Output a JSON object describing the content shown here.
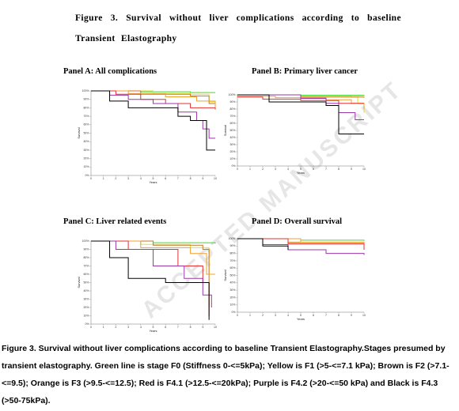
{
  "header": {
    "title": "Figure 3. Survival without liver complications according to baseline Transient Elastography"
  },
  "watermark": "ACCEPTED MANUSCRIPT",
  "caption": "Figure 3. Survival without liver complications according to baseline Transient Elastography.Stages presumed by transient elastography. Green line is stage F0 (Stiffness 0-<=5kPa); Yellow is F1 (>5-<=7.1 kPa); Brown is F2 (>7.1-<=9.5); Orange is F3 (>9.5-<=12.5); Red is F4.1 (>12.5-<=20kPa); Purple is F4.2 (>20-<=50 kPa) and Black is F4.3 (>50-75kPa).",
  "chart_data": [
    {
      "type": "line",
      "title": "Panel A: All complications",
      "xlabel": "Years",
      "ylabel": "Survival",
      "xlim": [
        0,
        10
      ],
      "ylim": [
        0,
        100
      ],
      "xticks": [
        0,
        1,
        2,
        3,
        4,
        5,
        6,
        7,
        8,
        9,
        10
      ],
      "yticks": [
        {
          "value": 0,
          "label": "0%"
        },
        {
          "value": 10,
          "label": "10%"
        },
        {
          "value": 20,
          "label": "20%"
        },
        {
          "value": 30,
          "label": "30%"
        },
        {
          "value": 40,
          "label": "40%"
        },
        {
          "value": 50,
          "label": "50%"
        },
        {
          "value": 60,
          "label": "60%"
        },
        {
          "value": 70,
          "label": "70%"
        },
        {
          "value": 80,
          "label": "80%"
        },
        {
          "value": 90,
          "label": "90%"
        },
        {
          "value": 100,
          "label": "100%"
        }
      ],
      "series": [
        {
          "color": "#44d63a",
          "x": [
            0,
            4,
            8,
            10
          ],
          "values": [
            100,
            99,
            98,
            98
          ]
        },
        {
          "color": "#e6e020",
          "x": [
            0,
            5,
            8,
            9.5,
            10
          ],
          "values": [
            100,
            97,
            96,
            87,
            80
          ]
        },
        {
          "color": "#c47a22",
          "x": [
            0,
            4,
            8,
            9.5,
            10
          ],
          "values": [
            100,
            96,
            94,
            85,
            85
          ]
        },
        {
          "color": "#f0a030",
          "x": [
            0,
            3,
            6,
            8.5,
            10
          ],
          "values": [
            100,
            97,
            93,
            88,
            80
          ]
        },
        {
          "color": "#e53030",
          "x": [
            0,
            2,
            4,
            6,
            8,
            10
          ],
          "values": [
            100,
            96,
            90,
            85,
            80,
            78
          ]
        },
        {
          "color": "#9a36a8",
          "x": [
            0.5,
            1.5,
            3,
            5,
            7,
            8.5,
            9,
            9.5,
            10
          ],
          "values": [
            100,
            95,
            90,
            85,
            75,
            65,
            55,
            44,
            44
          ]
        },
        {
          "color": "#000000",
          "x": [
            0,
            1.5,
            3,
            6.5,
            7,
            8,
            9.3,
            10
          ],
          "values": [
            100,
            88,
            80,
            80,
            70,
            65,
            30,
            30
          ]
        }
      ]
    },
    {
      "type": "line",
      "title": "Panel B: Primary liver cancer",
      "xlabel": "Years",
      "ylabel": "Survival",
      "xlim": [
        0,
        10
      ],
      "ylim": [
        0,
        100
      ],
      "xticks": [
        0,
        1,
        2,
        3,
        4,
        5,
        6,
        7,
        8,
        9,
        10
      ],
      "yticks": [
        {
          "value": 0,
          "label": "0%"
        },
        {
          "value": 10,
          "label": "10%"
        },
        {
          "value": 20,
          "label": "20%"
        },
        {
          "value": 30,
          "label": "30%"
        },
        {
          "value": 40,
          "label": "40%"
        },
        {
          "value": 50,
          "label": "50%"
        },
        {
          "value": 60,
          "label": "60%"
        },
        {
          "value": 70,
          "label": "70%"
        },
        {
          "value": 80,
          "label": "80%"
        },
        {
          "value": 90,
          "label": "90%"
        },
        {
          "value": 100,
          "label": "100%"
        }
      ],
      "series": [
        {
          "color": "#44d63a",
          "x": [
            0,
            5,
            10
          ],
          "values": [
            100,
            99.5,
            99
          ]
        },
        {
          "color": "#e6e020",
          "x": [
            0,
            5,
            9,
            9.5,
            10
          ],
          "values": [
            100,
            98,
            97,
            88,
            75
          ]
        },
        {
          "color": "#c47a22",
          "x": [
            0,
            5,
            10
          ],
          "values": [
            100,
            97,
            96
          ]
        },
        {
          "color": "#f0a030",
          "x": [
            0,
            3,
            7,
            9,
            10
          ],
          "values": [
            98,
            96,
            93,
            88,
            80
          ]
        },
        {
          "color": "#e53030",
          "x": [
            0,
            2,
            5,
            8,
            10
          ],
          "values": [
            97,
            94,
            92,
            88,
            88
          ]
        },
        {
          "color": "#9a36a8",
          "x": [
            0,
            5,
            7,
            8,
            9.3,
            10
          ],
          "values": [
            100,
            95,
            88,
            75,
            65,
            65
          ]
        },
        {
          "color": "#000000",
          "x": [
            0,
            2.5,
            7,
            8,
            10
          ],
          "values": [
            100,
            90,
            85,
            45,
            45
          ]
        }
      ]
    },
    {
      "type": "line",
      "title": "Panel C: Liver related events",
      "xlabel": "Years",
      "ylabel": "Survival",
      "xlim": [
        0,
        10
      ],
      "ylim": [
        0,
        100
      ],
      "xticks": [
        0,
        1,
        2,
        3,
        4,
        5,
        6,
        7,
        8,
        9,
        10
      ],
      "yticks": [
        {
          "value": 0,
          "label": "0%"
        },
        {
          "value": 10,
          "label": "10%"
        },
        {
          "value": 20,
          "label": "20%"
        },
        {
          "value": 30,
          "label": "30%"
        },
        {
          "value": 40,
          "label": "40%"
        },
        {
          "value": 50,
          "label": "50%"
        },
        {
          "value": 60,
          "label": "60%"
        },
        {
          "value": 70,
          "label": "70%"
        },
        {
          "value": 80,
          "label": "80%"
        },
        {
          "value": 90,
          "label": "90%"
        },
        {
          "value": 100,
          "label": "100%"
        }
      ],
      "series": [
        {
          "color": "#44d63a",
          "x": [
            0,
            5,
            10
          ],
          "values": [
            100,
            98,
            97
          ]
        },
        {
          "color": "#e6e020",
          "x": [
            0,
            4,
            8,
            9.5,
            10
          ],
          "values": [
            100,
            96,
            92,
            60,
            60
          ]
        },
        {
          "color": "#c47a22",
          "x": [
            0,
            5,
            9,
            9.5
          ],
          "values": [
            100,
            95,
            90,
            20
          ]
        },
        {
          "color": "#f0a030",
          "x": [
            0,
            4,
            8,
            9.3,
            10
          ],
          "values": [
            100,
            92,
            85,
            60,
            60
          ]
        },
        {
          "color": "#e53030",
          "x": [
            0,
            3,
            7,
            9,
            9.5
          ],
          "values": [
            100,
            90,
            70,
            50,
            10
          ]
        },
        {
          "color": "#9a36a8",
          "x": [
            0,
            2,
            5,
            7.5,
            9,
            9.7
          ],
          "values": [
            100,
            90,
            70,
            55,
            35,
            20
          ]
        },
        {
          "color": "#000000",
          "x": [
            0,
            1.5,
            3,
            6,
            8.5,
            9.5
          ],
          "values": [
            100,
            80,
            55,
            50,
            50,
            5
          ]
        }
      ]
    },
    {
      "type": "line",
      "title": "Panel D: Overall survival",
      "xlabel": "Years",
      "ylabel": "Survival",
      "xlim": [
        0,
        10
      ],
      "ylim": [
        0,
        100
      ],
      "xticks": [
        0,
        1,
        2,
        3,
        4,
        5,
        6,
        7,
        8,
        9,
        10
      ],
      "yticks": [
        {
          "value": 0,
          "label": "0%"
        },
        {
          "value": 10,
          "label": "10%"
        },
        {
          "value": 20,
          "label": "20%"
        },
        {
          "value": 30,
          "label": "30%"
        },
        {
          "value": 40,
          "label": "40%"
        },
        {
          "value": 50,
          "label": "50%"
        },
        {
          "value": 60,
          "label": "60%"
        },
        {
          "value": 70,
          "label": "70%"
        },
        {
          "value": 80,
          "label": "80%"
        },
        {
          "value": 90,
          "label": "90%"
        },
        {
          "value": 100,
          "label": "100%"
        }
      ],
      "series": [
        {
          "color": "#44d63a",
          "x": [
            0,
            5,
            10
          ],
          "values": [
            100,
            98,
            97
          ]
        },
        {
          "color": "#e6e020",
          "x": [
            0,
            4,
            10
          ],
          "values": [
            100,
            95,
            92
          ]
        },
        {
          "color": "#c47a22",
          "x": [
            0,
            4,
            10
          ],
          "values": [
            100,
            95,
            90
          ]
        },
        {
          "color": "#f0a030",
          "x": [
            0,
            5,
            10
          ],
          "values": [
            100,
            95,
            88
          ]
        },
        {
          "color": "#e53030",
          "x": [
            0,
            4,
            10
          ],
          "values": [
            100,
            93,
            85
          ]
        },
        {
          "color": "#9a36a8",
          "x": [
            0,
            2,
            4,
            7,
            10
          ],
          "values": [
            100,
            92,
            85,
            80,
            78
          ]
        },
        {
          "color": "#000000",
          "x": [
            0,
            2,
            4
          ],
          "values": [
            100,
            90,
            85
          ]
        }
      ]
    }
  ]
}
